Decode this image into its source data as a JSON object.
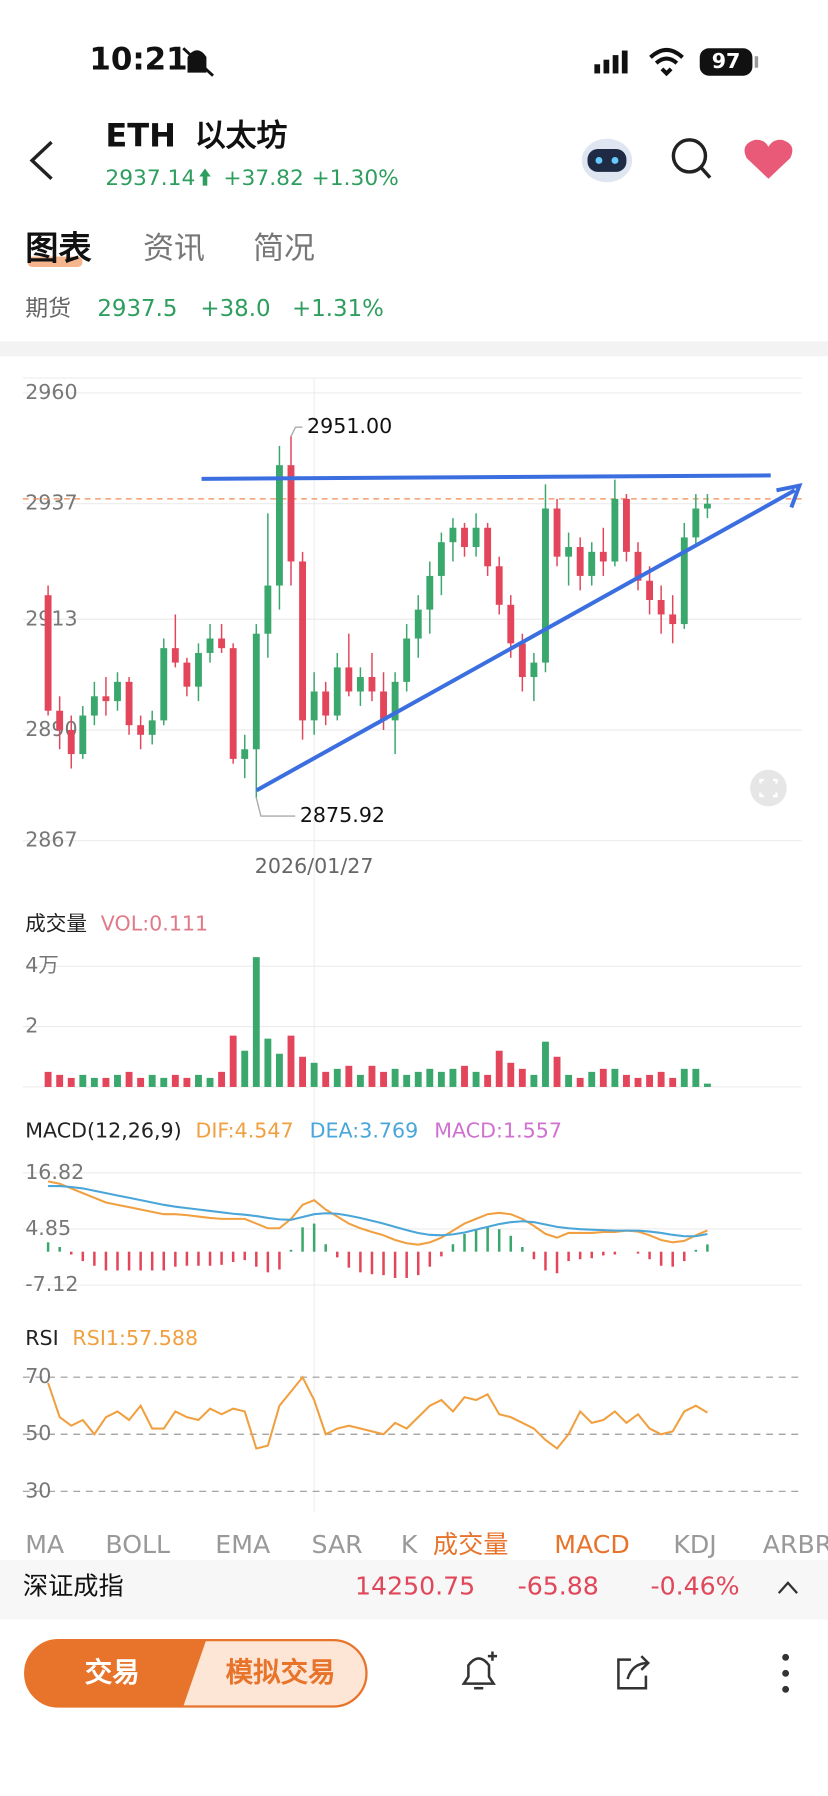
{
  "status_bar": {
    "time": "10:21",
    "battery": "97"
  },
  "header": {
    "symbol": "ETH",
    "name": "以太坊",
    "price": "2937.14",
    "change": "+37.82",
    "change_pct": "+1.30%"
  },
  "tabs": [
    "图表",
    "资讯",
    "简况"
  ],
  "futures": {
    "label": "期货",
    "price": "2937.5",
    "change": "+38.0",
    "change_pct": "+1.31%"
  },
  "chart_data": [
    {
      "type": "candlestick",
      "colors": {
        "up": "#3aa76d",
        "down": "#e3465b"
      },
      "categories": [
        null,
        null,
        null,
        null,
        null,
        null,
        null,
        null,
        null,
        null,
        null,
        null,
        null,
        null,
        null,
        null,
        null,
        null,
        null,
        null,
        null,
        null,
        null,
        "2026/01/27",
        null,
        null,
        null,
        null,
        null,
        null,
        null,
        null,
        null,
        null,
        null,
        null,
        null,
        null,
        null,
        null,
        null,
        null,
        null,
        null,
        null,
        null,
        null,
        null,
        null,
        null,
        null,
        null,
        null,
        null,
        null,
        null,
        null,
        null
      ],
      "open": [
        2918,
        2894,
        2890,
        2885,
        2893,
        2897,
        2896,
        2900,
        2891,
        2889,
        2892,
        2907,
        2904,
        2899,
        2906,
        2909,
        2907,
        2884,
        2886,
        2910,
        2920,
        2945,
        2925,
        2892,
        2898,
        2893,
        2903,
        2898,
        2901,
        2898,
        2892,
        2900,
        2909,
        2915,
        2922,
        2929,
        2932,
        2928,
        2932,
        2924,
        2916,
        2908,
        2901,
        2904,
        2936,
        2926,
        2928,
        2922,
        2927,
        2925,
        2938,
        2927,
        2921,
        2917,
        2914,
        2912,
        2930,
        2936
      ],
      "high": [
        2920,
        2897,
        2893,
        2895,
        2900,
        2901,
        2902,
        2901,
        2893,
        2894,
        2909,
        2914,
        2905,
        2908,
        2912,
        2912,
        2908,
        2889,
        2912,
        2935,
        2949,
        2951,
        2927,
        2902,
        2900,
        2906,
        2910,
        2903,
        2906,
        2902,
        2902,
        2912,
        2918,
        2925,
        2931,
        2934,
        2933,
        2935,
        2933,
        2926,
        2918,
        2910,
        2906,
        2941,
        2938,
        2931,
        2930,
        2929,
        2932,
        2942,
        2939,
        2929,
        2924,
        2920,
        2918,
        2933,
        2939,
        2939
      ],
      "low": [
        2893,
        2886,
        2882,
        2884,
        2891,
        2893,
        2894,
        2889,
        2886,
        2887,
        2891,
        2903,
        2897,
        2896,
        2904,
        2906,
        2883,
        2880,
        2875.92,
        2905,
        2915,
        2920,
        2888,
        2889,
        2891,
        2892,
        2897,
        2895,
        2896,
        2890,
        2885,
        2898,
        2905,
        2910,
        2918,
        2925,
        2926,
        2926,
        2922,
        2914,
        2905,
        2898,
        2896,
        2902,
        2924,
        2920,
        2919,
        2920,
        2922,
        2924,
        2925,
        2919,
        2914,
        2910,
        2908,
        2911,
        2928,
        2934
      ],
      "close": [
        2894,
        2890,
        2885,
        2893,
        2897,
        2896,
        2900,
        2891,
        2889,
        2892,
        2907,
        2904,
        2899,
        2906,
        2909,
        2907,
        2884,
        2886,
        2910,
        2920,
        2945,
        2925,
        2892,
        2898,
        2893,
        2903,
        2898,
        2901,
        2898,
        2892,
        2900,
        2909,
        2915,
        2922,
        2929,
        2932,
        2928,
        2932,
        2924,
        2916,
        2908,
        2901,
        2904,
        2936,
        2926,
        2928,
        2922,
        2927,
        2925,
        2938,
        2927,
        2921,
        2917,
        2914,
        2912,
        2930,
        2936,
        2937
      ],
      "ylim": [
        2867,
        2960
      ],
      "yticks": [
        2960,
        2937,
        2913,
        2890,
        2867
      ],
      "price_line": 2938,
      "annotations": [
        {
          "value": 2951,
          "label": "2951.00"
        },
        {
          "value": 2875.92,
          "label": "2875.92"
        }
      ]
    },
    {
      "type": "bar",
      "title": "成交量",
      "series": [
        {
          "name": "VOL:0.111",
          "color": "#e07a88",
          "values": [
            0.5,
            0.4,
            0.3,
            0.4,
            0.3,
            0.3,
            0.4,
            0.5,
            0.3,
            0.4,
            0.3,
            0.4,
            0.3,
            0.4,
            0.3,
            0.5,
            1.7,
            1.2,
            4.3,
            1.6,
            1.1,
            1.7,
            1.0,
            0.8,
            0.5,
            0.6,
            0.7,
            0.4,
            0.7,
            0.5,
            0.6,
            0.4,
            0.5,
            0.6,
            0.5,
            0.6,
            0.7,
            0.5,
            0.4,
            1.2,
            0.8,
            0.6,
            0.4,
            1.5,
            1.0,
            0.4,
            0.3,
            0.5,
            0.6,
            0.6,
            0.4,
            0.3,
            0.4,
            0.5,
            0.3,
            0.6,
            0.6,
            0.111
          ]
        }
      ],
      "ylim": [
        0,
        4.4
      ],
      "yticks": [
        {
          "value": 4,
          "label": "4万"
        },
        2
      ]
    },
    {
      "type": "macd",
      "title": "MACD(12,26,9)",
      "series": [
        {
          "name": "DIF:4.547",
          "color": "#f0a040",
          "values": [
            15,
            14.5,
            13.5,
            12.5,
            11.5,
            10.5,
            10,
            9.5,
            9,
            8.5,
            8,
            8,
            7.8,
            7.5,
            7.2,
            7,
            7,
            7,
            6,
            5,
            5,
            7,
            10,
            11,
            9,
            7.5,
            6,
            5,
            4.2,
            3.5,
            2.5,
            1.8,
            1.5,
            2,
            3,
            4.5,
            6,
            7,
            8,
            8.3,
            8,
            7,
            5.5,
            3.8,
            3,
            4,
            4,
            4,
            4.2,
            4.2,
            4.5,
            4.3,
            3.5,
            2.5,
            2,
            2.3,
            3.5,
            4.547
          ]
        },
        {
          "name": "DEA:3.769",
          "color": "#4aa6d8",
          "values": [
            14,
            14,
            13.8,
            13.5,
            13,
            12.5,
            12,
            11.5,
            11,
            10.5,
            10,
            9.6,
            9.3,
            9,
            8.7,
            8.4,
            8.1,
            7.9,
            7.6,
            7.2,
            6.9,
            6.8,
            7.4,
            8,
            8.2,
            8.1,
            7.7,
            7.2,
            6.6,
            6,
            5.3,
            4.6,
            4,
            3.6,
            3.5,
            3.7,
            4.1,
            4.7,
            5.3,
            5.9,
            6.3,
            6.5,
            6.3,
            5.8,
            5.3,
            5,
            4.8,
            4.7,
            4.6,
            4.5,
            4.5,
            4.5,
            4.3,
            4,
            3.6,
            3.3,
            3.3,
            3.769
          ]
        },
        {
          "name": "MACD:1.557",
          "color": "#d070d0",
          "values": [
            2,
            1,
            -0.6,
            -2,
            -3,
            -4,
            -4,
            -4,
            -4,
            -4,
            -4,
            -3.2,
            -3,
            -3,
            -3,
            -2.8,
            -2.2,
            -1.8,
            -3.2,
            -4.4,
            -3.8,
            0.4,
            5.2,
            6,
            1.6,
            -1.2,
            -3.4,
            -4.4,
            -4.8,
            -5,
            -5.6,
            -5.6,
            -5,
            -3.2,
            -1,
            1.6,
            3.8,
            4.6,
            5.4,
            4.8,
            3.4,
            1,
            -1.6,
            -4,
            -4.6,
            -2,
            -1.6,
            -1.4,
            -0.8,
            -0.6,
            0,
            -0.4,
            -1.6,
            -3,
            -3.2,
            -2,
            0.4,
            1.557
          ]
        }
      ],
      "ylim": [
        -7.12,
        16.82
      ],
      "yticks": [
        16.82,
        4.85,
        -7.12
      ]
    },
    {
      "type": "line",
      "title": "RSI",
      "series": [
        {
          "name": "RSI1:57.588",
          "color": "#f0a040",
          "values": [
            68,
            56,
            53,
            55,
            50,
            56,
            58,
            55,
            60,
            52,
            52,
            58,
            56,
            55,
            59,
            57,
            59,
            58,
            45,
            46,
            60,
            65,
            70,
            62,
            50,
            52,
            53,
            52,
            51,
            50,
            54,
            52,
            56,
            60,
            62,
            58,
            63,
            62,
            64,
            57,
            56,
            54,
            52,
            48,
            45,
            50,
            58,
            54,
            55,
            58,
            54,
            57,
            52,
            50,
            51,
            58,
            60,
            57.588
          ]
        }
      ],
      "ylim": [
        26,
        75
      ],
      "yticks": [
        70,
        50,
        30
      ]
    }
  ],
  "indicator_tabs": [
    "MA",
    "BOLL",
    "EMA",
    "SAR",
    "K",
    "成交量",
    "MACD",
    "KDJ",
    "ARBR"
  ],
  "ticker": {
    "name": "深证成指",
    "price": "14250.75",
    "change": "-65.88",
    "change_pct": "-0.46%"
  },
  "toolbar": {
    "trade": "交易",
    "sim_trade": "模拟交易"
  }
}
